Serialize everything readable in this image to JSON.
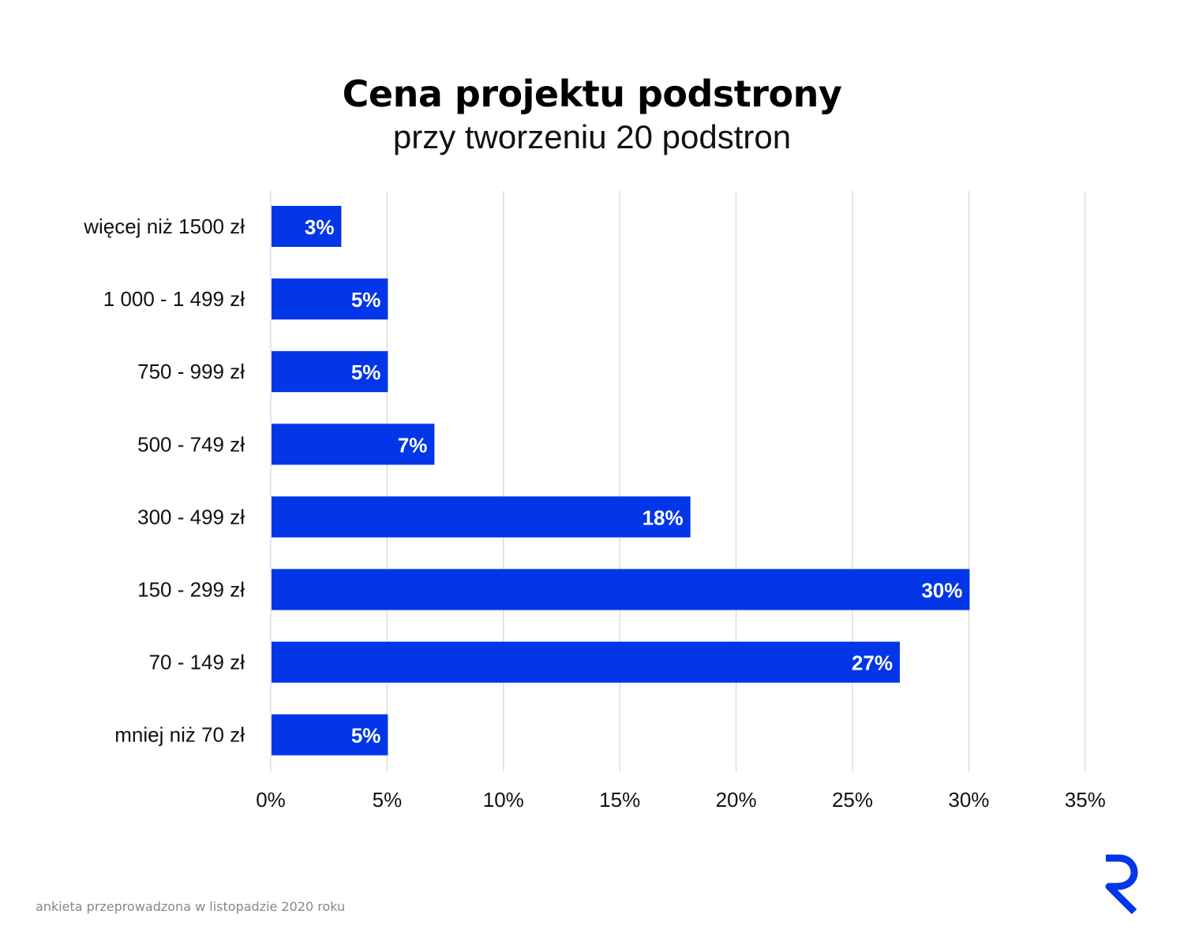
{
  "title": "Cena projektu podstrony",
  "subtitle": "przy tworzeniu 20 podstron",
  "footnote": "ankieta przeprowadzona w listopadzie 2020 roku",
  "colors": {
    "bar": "#0336e8",
    "grid": "#dddddd",
    "bar_label": "#ffffff",
    "logo": "#0336e8"
  },
  "logo": "brand-r-logo",
  "chart_data": {
    "type": "bar",
    "orientation": "horizontal",
    "categories": [
      "więcej niż 1500 zł",
      "1 000 - 1 499 zł",
      "750 - 999 zł",
      "500 - 749 zł",
      "300 - 499 zł",
      "150 - 299 zł",
      "70 - 149 zł",
      "mniej niż 70 zł"
    ],
    "values": [
      3,
      5,
      5,
      7,
      18,
      30,
      27,
      5
    ],
    "data_labels": [
      "3%",
      "5%",
      "5%",
      "7%",
      "18%",
      "30%",
      "27%",
      "5%"
    ],
    "xlim": [
      0,
      35
    ],
    "xticks": [
      0,
      5,
      10,
      15,
      20,
      25,
      30,
      35
    ],
    "xtick_labels": [
      "0%",
      "5%",
      "10%",
      "15%",
      "20%",
      "25%",
      "30%",
      "35%"
    ],
    "grid": true,
    "legend": "none"
  }
}
